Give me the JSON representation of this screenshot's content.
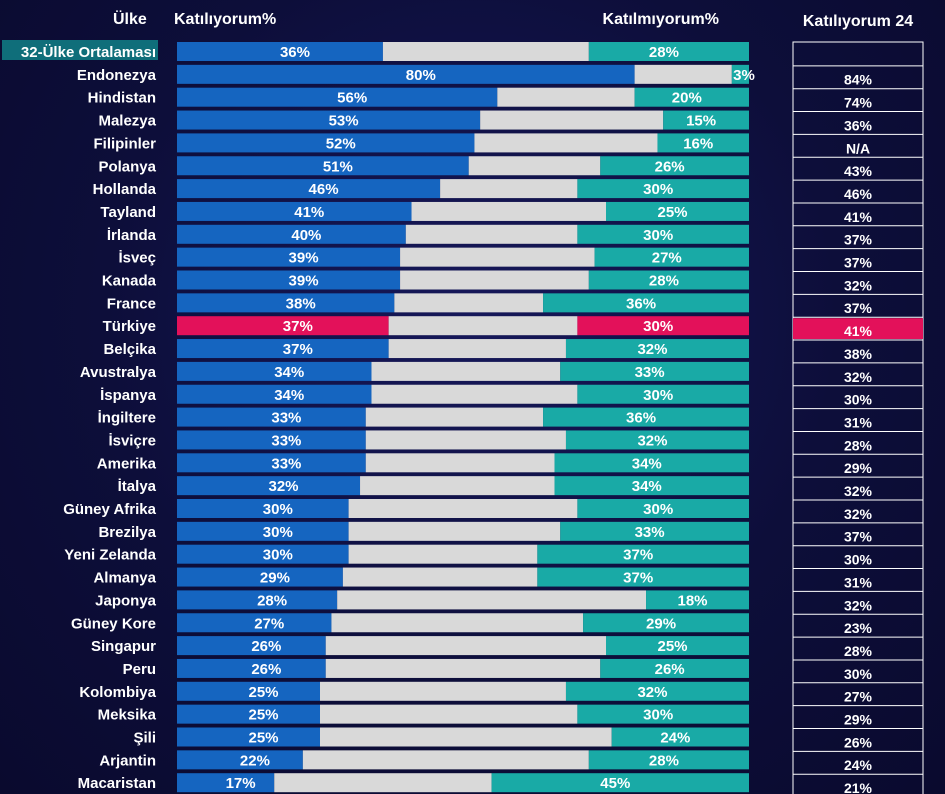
{
  "chart_data": {
    "type": "bar",
    "headers": {
      "country": "Ülke",
      "agree": "Katılıyorum%",
      "disagree": "Katılmıyorum%",
      "agree24": "Katılıyorum 24"
    },
    "series": [
      {
        "name": "Katılıyorum%"
      },
      {
        "name": "Katılmıyorum%"
      },
      {
        "name": "Katılıyorum 24"
      }
    ],
    "rows": [
      {
        "country": "32-Ülke Ortalaması",
        "agree": 36,
        "disagree": 28,
        "agree24": "",
        "highlight": "average"
      },
      {
        "country": "Endonezya",
        "agree": 80,
        "disagree": 3,
        "agree24": "84%"
      },
      {
        "country": "Hindistan",
        "agree": 56,
        "disagree": 20,
        "agree24": "74%"
      },
      {
        "country": "Malezya",
        "agree": 53,
        "disagree": 15,
        "agree24": "36%"
      },
      {
        "country": "Filipinler",
        "agree": 52,
        "disagree": 16,
        "agree24": "N/A"
      },
      {
        "country": "Polanya",
        "agree": 51,
        "disagree": 26,
        "agree24": "43%"
      },
      {
        "country": "Hollanda",
        "agree": 46,
        "disagree": 30,
        "agree24": "46%"
      },
      {
        "country": "Tayland",
        "agree": 41,
        "disagree": 25,
        "agree24": "41%"
      },
      {
        "country": "İrlanda",
        "agree": 40,
        "disagree": 30,
        "agree24": "37%"
      },
      {
        "country": "İsveç",
        "agree": 39,
        "disagree": 27,
        "agree24": "37%"
      },
      {
        "country": "Kanada",
        "agree": 39,
        "disagree": 28,
        "agree24": "32%"
      },
      {
        "country": "France",
        "agree": 38,
        "disagree": 36,
        "agree24": "37%"
      },
      {
        "country": "Türkiye",
        "agree": 37,
        "disagree": 30,
        "agree24": "41%",
        "highlight": "turkey"
      },
      {
        "country": "Belçika",
        "agree": 37,
        "disagree": 32,
        "agree24": "38%"
      },
      {
        "country": "Avustralya",
        "agree": 34,
        "disagree": 33,
        "agree24": "32%"
      },
      {
        "country": "İspanya",
        "agree": 34,
        "disagree": 30,
        "agree24": "30%"
      },
      {
        "country": "İngiltere",
        "agree": 33,
        "disagree": 36,
        "agree24": "31%"
      },
      {
        "country": "İsviçre",
        "agree": 33,
        "disagree": 32,
        "agree24": "28%"
      },
      {
        "country": "Amerika",
        "agree": 33,
        "disagree": 34,
        "agree24": "29%"
      },
      {
        "country": "İtalya",
        "agree": 32,
        "disagree": 34,
        "agree24": "32%"
      },
      {
        "country": "Güney Afrika",
        "agree": 30,
        "disagree": 30,
        "agree24": "32%"
      },
      {
        "country": "Brezilya",
        "agree": 30,
        "disagree": 33,
        "agree24": "37%"
      },
      {
        "country": "Yeni Zelanda",
        "agree": 30,
        "disagree": 37,
        "agree24": "30%"
      },
      {
        "country": "Almanya",
        "agree": 29,
        "disagree": 37,
        "agree24": "31%"
      },
      {
        "country": "Japonya",
        "agree": 28,
        "disagree": 18,
        "agree24": "32%"
      },
      {
        "country": "Güney Kore",
        "agree": 27,
        "disagree": 29,
        "agree24": "23%"
      },
      {
        "country": "Singapur",
        "agree": 26,
        "disagree": 25,
        "agree24": "28%"
      },
      {
        "country": "Peru",
        "agree": 26,
        "disagree": 26,
        "agree24": "30%"
      },
      {
        "country": "Kolombiya",
        "agree": 25,
        "disagree": 32,
        "agree24": "27%"
      },
      {
        "country": "Meksika",
        "agree": 25,
        "disagree": 30,
        "agree24": "29%"
      },
      {
        "country": "Şili",
        "agree": 25,
        "disagree": 24,
        "agree24": "26%"
      },
      {
        "country": "Arjantin",
        "agree": 22,
        "disagree": 28,
        "agree24": "24%"
      },
      {
        "country": "Macaristan",
        "agree": 17,
        "disagree": 45,
        "agree24": "21%"
      }
    ],
    "xlim": [
      0,
      100
    ],
    "colors": {
      "agree": "#1565c0",
      "neutral": "#d9d9d9",
      "disagree": "#19aaa6",
      "highlight": "#e3115a",
      "avg_label_bg": "#0f6e7a",
      "background": "#0f1045"
    }
  }
}
